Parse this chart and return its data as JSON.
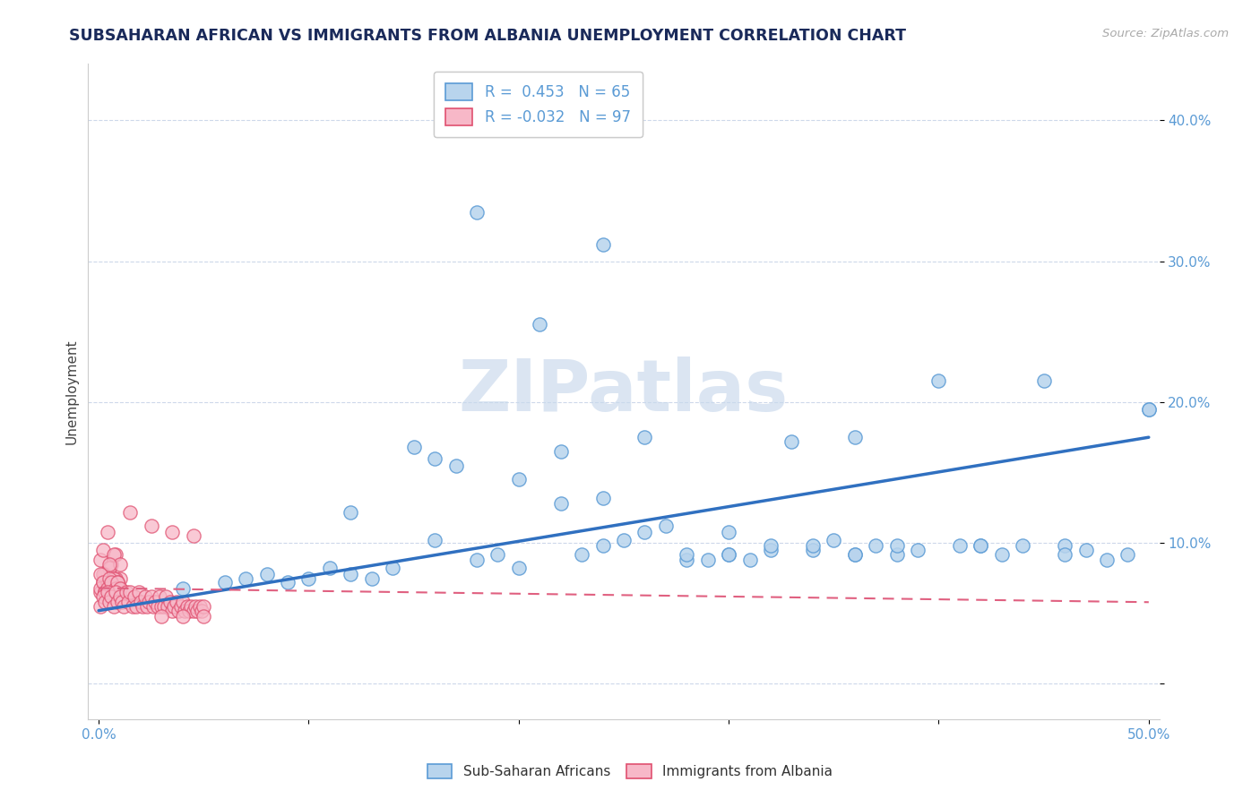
{
  "title": "SUBSAHARAN AFRICAN VS IMMIGRANTS FROM ALBANIA UNEMPLOYMENT CORRELATION CHART",
  "source": "Source: ZipAtlas.com",
  "ylabel": "Unemployment",
  "xlim": [
    -0.005,
    0.505
  ],
  "ylim": [
    -0.025,
    0.44
  ],
  "xticks": [
    0.0,
    0.1,
    0.2,
    0.3,
    0.4,
    0.5
  ],
  "xticklabels": [
    "0.0%",
    "",
    "",
    "",
    "",
    "50.0%"
  ],
  "yticks": [
    0.0,
    0.1,
    0.2,
    0.3,
    0.4
  ],
  "yticklabels": [
    "",
    "10.0%",
    "20.0%",
    "30.0%",
    "40.0%"
  ],
  "blue_R": 0.453,
  "blue_N": 65,
  "pink_R": -0.032,
  "pink_N": 97,
  "blue_color": "#b8d4ed",
  "pink_color": "#f7b8c8",
  "blue_edge_color": "#5b9bd5",
  "pink_edge_color": "#e05070",
  "blue_line_color": "#3070c0",
  "pink_line_color": "#e06080",
  "watermark_color": "#c8d8ec",
  "title_color": "#1a2a5a",
  "tick_color": "#5b9bd5",
  "source_color": "#aaaaaa",
  "grid_color": "#c8d4e8",
  "blue_scatter_x": [
    0.04,
    0.06,
    0.07,
    0.08,
    0.09,
    0.1,
    0.11,
    0.12,
    0.13,
    0.14,
    0.15,
    0.16,
    0.17,
    0.18,
    0.19,
    0.2,
    0.21,
    0.22,
    0.23,
    0.24,
    0.25,
    0.26,
    0.27,
    0.28,
    0.29,
    0.3,
    0.31,
    0.32,
    0.33,
    0.34,
    0.35,
    0.36,
    0.37,
    0.38,
    0.39,
    0.4,
    0.41,
    0.42,
    0.43,
    0.44,
    0.45,
    0.46,
    0.47,
    0.48,
    0.49,
    0.5,
    0.12,
    0.16,
    0.2,
    0.24,
    0.28,
    0.32,
    0.36,
    0.22,
    0.26,
    0.3,
    0.34,
    0.38,
    0.42,
    0.46,
    0.5,
    0.18,
    0.24,
    0.3,
    0.36
  ],
  "blue_scatter_y": [
    0.068,
    0.072,
    0.075,
    0.078,
    0.072,
    0.075,
    0.082,
    0.078,
    0.075,
    0.082,
    0.168,
    0.16,
    0.155,
    0.088,
    0.092,
    0.082,
    0.255,
    0.165,
    0.092,
    0.098,
    0.102,
    0.108,
    0.112,
    0.088,
    0.088,
    0.092,
    0.088,
    0.095,
    0.172,
    0.095,
    0.102,
    0.092,
    0.098,
    0.092,
    0.095,
    0.215,
    0.098,
    0.098,
    0.092,
    0.098,
    0.215,
    0.098,
    0.095,
    0.088,
    0.092,
    0.195,
    0.122,
    0.102,
    0.145,
    0.132,
    0.092,
    0.098,
    0.092,
    0.128,
    0.175,
    0.108,
    0.098,
    0.098,
    0.098,
    0.092,
    0.195,
    0.335,
    0.312,
    0.092,
    0.175
  ],
  "pink_scatter_x": [
    0.001,
    0.002,
    0.003,
    0.004,
    0.005,
    0.006,
    0.007,
    0.008,
    0.009,
    0.01,
    0.001,
    0.002,
    0.003,
    0.004,
    0.005,
    0.006,
    0.007,
    0.008,
    0.009,
    0.01,
    0.001,
    0.002,
    0.003,
    0.004,
    0.005,
    0.006,
    0.007,
    0.008,
    0.009,
    0.01,
    0.001,
    0.002,
    0.003,
    0.004,
    0.005,
    0.006,
    0.007,
    0.008,
    0.009,
    0.01,
    0.001,
    0.002,
    0.003,
    0.004,
    0.005,
    0.006,
    0.007,
    0.008,
    0.009,
    0.01,
    0.011,
    0.012,
    0.013,
    0.014,
    0.015,
    0.016,
    0.017,
    0.018,
    0.019,
    0.02,
    0.021,
    0.022,
    0.023,
    0.024,
    0.025,
    0.026,
    0.027,
    0.028,
    0.029,
    0.03,
    0.031,
    0.032,
    0.033,
    0.034,
    0.035,
    0.036,
    0.037,
    0.038,
    0.039,
    0.04,
    0.041,
    0.042,
    0.043,
    0.044,
    0.045,
    0.046,
    0.047,
    0.048,
    0.049,
    0.05,
    0.03,
    0.04,
    0.05,
    0.025,
    0.035,
    0.045,
    0.015
  ],
  "pink_scatter_y": [
    0.065,
    0.072,
    0.068,
    0.078,
    0.082,
    0.085,
    0.075,
    0.092,
    0.065,
    0.075,
    0.088,
    0.095,
    0.078,
    0.108,
    0.082,
    0.068,
    0.092,
    0.075,
    0.065,
    0.085,
    0.068,
    0.078,
    0.065,
    0.072,
    0.085,
    0.068,
    0.075,
    0.065,
    0.072,
    0.068,
    0.078,
    0.072,
    0.065,
    0.068,
    0.075,
    0.072,
    0.065,
    0.068,
    0.072,
    0.068,
    0.055,
    0.062,
    0.058,
    0.065,
    0.058,
    0.062,
    0.055,
    0.065,
    0.058,
    0.062,
    0.058,
    0.055,
    0.065,
    0.058,
    0.065,
    0.055,
    0.062,
    0.055,
    0.065,
    0.058,
    0.055,
    0.062,
    0.055,
    0.058,
    0.062,
    0.055,
    0.058,
    0.055,
    0.062,
    0.055,
    0.055,
    0.062,
    0.055,
    0.058,
    0.052,
    0.055,
    0.058,
    0.052,
    0.055,
    0.058,
    0.052,
    0.055,
    0.052,
    0.055,
    0.052,
    0.055,
    0.052,
    0.055,
    0.052,
    0.055,
    0.048,
    0.048,
    0.048,
    0.112,
    0.108,
    0.105,
    0.122
  ],
  "blue_trend_x0": 0.0,
  "blue_trend_y0": 0.052,
  "blue_trend_x1": 0.5,
  "blue_trend_y1": 0.175,
  "pink_trend_x0": 0.0,
  "pink_trend_y0": 0.068,
  "pink_trend_x1": 0.5,
  "pink_trend_y1": 0.058
}
